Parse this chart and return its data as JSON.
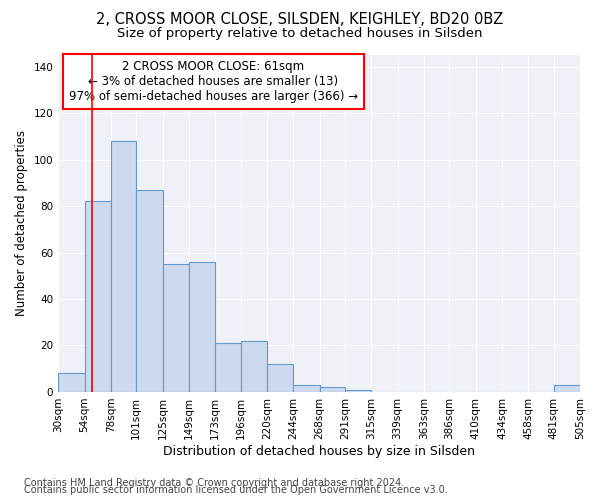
{
  "title1": "2, CROSS MOOR CLOSE, SILSDEN, KEIGHLEY, BD20 0BZ",
  "title2": "Size of property relative to detached houses in Silsden",
  "xlabel": "Distribution of detached houses by size in Silsden",
  "ylabel": "Number of detached properties",
  "footer1": "Contains HM Land Registry data © Crown copyright and database right 2024.",
  "footer2": "Contains public sector information licensed under the Open Government Licence v3.0.",
  "annotation_line1": "2 CROSS MOOR CLOSE: 61sqm",
  "annotation_line2": "← 3% of detached houses are smaller (13)",
  "annotation_line3": "97% of semi-detached houses are larger (366) →",
  "bar_color": "#ccd9ee",
  "bar_edge_color": "#6699cc",
  "red_line_x": 61,
  "bins": [
    30,
    54,
    78,
    101,
    125,
    149,
    173,
    196,
    220,
    244,
    268,
    291,
    315,
    339,
    363,
    386,
    410,
    434,
    458,
    481,
    505
  ],
  "counts": [
    8,
    82,
    108,
    87,
    55,
    56,
    21,
    22,
    12,
    3,
    2,
    1,
    0,
    0,
    0,
    0,
    0,
    0,
    0,
    3
  ],
  "ylim": [
    0,
    145
  ],
  "yticks": [
    0,
    20,
    40,
    60,
    80,
    100,
    120,
    140
  ],
  "bg_color": "#ffffff",
  "plot_bg_color": "#eef2f8",
  "grid_color": "#ffffff",
  "title1_fontsize": 10.5,
  "title2_fontsize": 9.5,
  "xlabel_fontsize": 9,
  "ylabel_fontsize": 8.5,
  "tick_fontsize": 7.5,
  "footer_fontsize": 7,
  "annot_fontsize": 8.5
}
